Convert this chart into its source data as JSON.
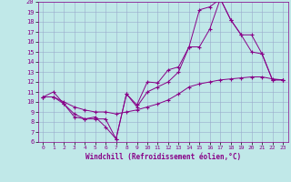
{
  "xlabel": "Windchill (Refroidissement éolien,°C)",
  "bg_color": "#c0e8e8",
  "line_color": "#880088",
  "grid_color": "#99aacc",
  "xmin": 0,
  "xmax": 23,
  "ymin": 6,
  "ymax": 20,
  "upper_x": [
    0,
    1,
    2,
    3,
    4,
    5,
    6,
    7,
    8,
    9,
    10,
    11,
    12,
    13,
    14,
    15,
    16,
    17,
    18,
    19,
    20,
    21,
    22,
    23
  ],
  "upper_y": [
    10.5,
    11.0,
    9.8,
    8.5,
    8.3,
    8.5,
    7.5,
    6.3,
    10.8,
    9.7,
    12.0,
    11.9,
    13.2,
    13.5,
    15.5,
    19.2,
    19.5,
    20.3,
    18.2,
    16.7,
    15.0,
    14.8,
    12.2,
    12.2
  ],
  "diag_x": [
    0,
    1,
    2,
    3,
    4,
    5,
    6,
    7,
    8,
    9,
    10,
    11,
    12,
    13,
    14,
    15,
    16,
    17,
    18,
    19,
    20,
    21,
    22,
    23
  ],
  "diag_y": [
    10.5,
    10.5,
    10.0,
    9.5,
    9.2,
    9.0,
    9.0,
    8.8,
    9.0,
    9.2,
    9.5,
    9.8,
    10.2,
    10.8,
    11.5,
    11.8,
    12.0,
    12.2,
    12.3,
    12.4,
    12.5,
    12.5,
    12.3,
    12.2
  ],
  "lower_x": [
    0,
    1,
    2,
    3,
    4,
    5,
    6,
    7,
    8,
    9,
    10,
    11,
    12,
    13,
    14,
    15,
    16,
    17,
    18,
    19,
    20,
    21,
    22,
    23
  ],
  "lower_y": [
    10.5,
    10.5,
    9.8,
    8.8,
    8.3,
    8.3,
    8.3,
    6.3,
    10.8,
    9.5,
    11.0,
    11.5,
    12.0,
    13.0,
    15.5,
    15.5,
    17.3,
    20.3,
    18.2,
    16.7,
    16.7,
    14.8,
    12.2,
    12.2
  ]
}
